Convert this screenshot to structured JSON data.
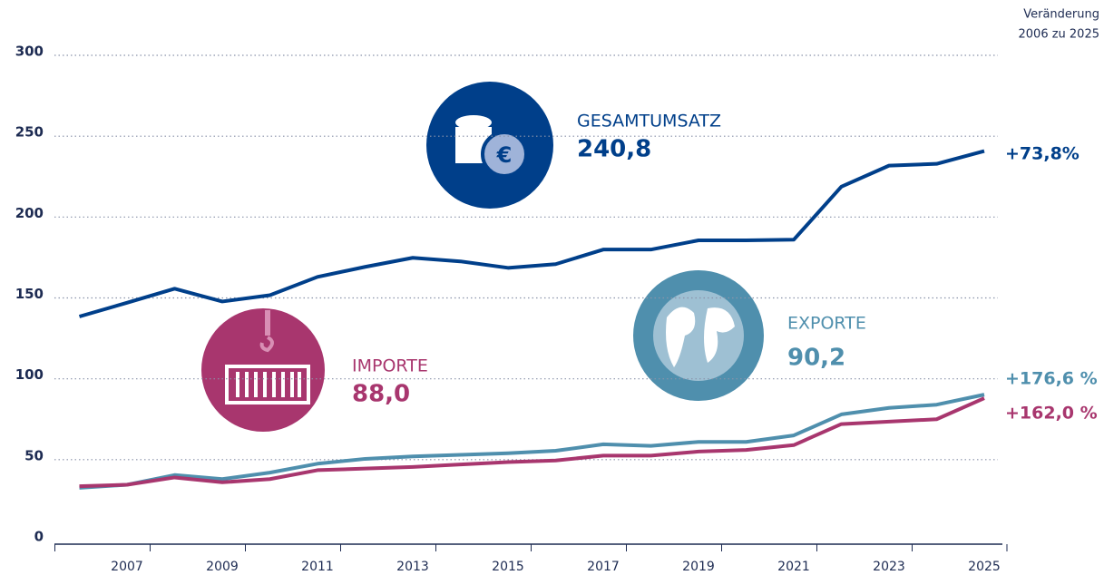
{
  "chart_data": {
    "type": "line",
    "header": [
      "Veränderung",
      "2006 zu 2025"
    ],
    "categories": [
      null,
      "2007",
      null,
      "2009",
      null,
      "2011",
      null,
      "2013",
      null,
      "2015",
      null,
      "2017",
      null,
      "2019",
      null,
      "2021",
      null,
      "2023",
      null,
      "2025"
    ],
    "series": [
      {
        "name": "GESAMTUMSATZ",
        "color": "#003f8a",
        "value_label": "240,8",
        "change": "+73,8%",
        "values": [
          138.5,
          147,
          155.7,
          147.8,
          151.7,
          163,
          169.2,
          174.8,
          172.6,
          168.6,
          170.9,
          179.9,
          179.9,
          185.6,
          185.6,
          186,
          218.8,
          231.8,
          232.9,
          240.8
        ]
      },
      {
        "name": "EXPORTE",
        "color": "#4f8fad",
        "value_label": "90,2",
        "change": "+176,6 %",
        "values": [
          32.6,
          34.5,
          40.5,
          38,
          42,
          47.5,
          50.5,
          52,
          53,
          54,
          55.5,
          59.5,
          58.5,
          61,
          61,
          65,
          78,
          82,
          84,
          90.2
        ]
      },
      {
        "name": "IMPORTE",
        "color": "#a8366e",
        "value_label": "88,0",
        "change": "+162,0 %",
        "values": [
          33.6,
          34.5,
          39,
          36,
          38,
          43.5,
          44.5,
          45.5,
          47,
          48.5,
          49.5,
          52.5,
          52.5,
          55,
          56,
          59,
          72,
          73.5,
          75,
          88.0
        ]
      }
    ],
    "ylim": [
      0,
      300
    ],
    "yticks": [
      0,
      50,
      100,
      150,
      200,
      250,
      300
    ],
    "grid": true
  }
}
